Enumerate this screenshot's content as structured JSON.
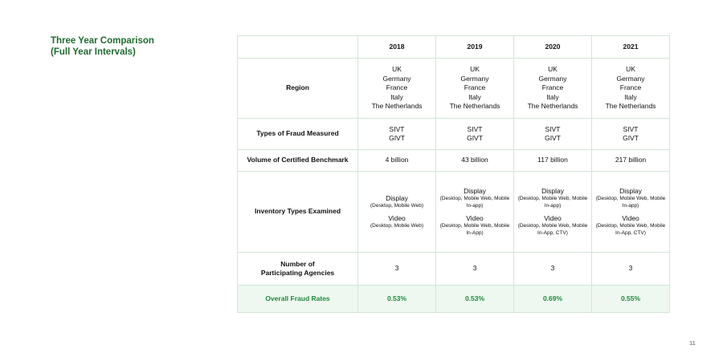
{
  "title": {
    "line1": "Three Year Comparison",
    "line2": "(Full Year Intervals)"
  },
  "years": [
    "2018",
    "2019",
    "2020",
    "2021"
  ],
  "rows": {
    "region": {
      "label": "Region",
      "values": [
        [
          "UK",
          "Germany",
          "France",
          "Italy",
          "The Netherlands"
        ],
        [
          "UK",
          "Germany",
          "France",
          "Italy",
          "The Netherlands"
        ],
        [
          "UK",
          "Germany",
          "France",
          "Italy",
          "The Netherlands"
        ],
        [
          "UK",
          "Germany",
          "France",
          "Italy",
          "The Netherlands"
        ]
      ]
    },
    "fraud_types": {
      "label": "Types of Fraud Measured",
      "values": [
        [
          "SIVT",
          "GIVT"
        ],
        [
          "SIVT",
          "GIVT"
        ],
        [
          "SIVT",
          "GIVT"
        ],
        [
          "SIVT",
          "GIVT"
        ]
      ]
    },
    "volume": {
      "label": "Volume of Certified Benchmark",
      "values": [
        "4 billion",
        "43 billion",
        "117 billion",
        "217 billion"
      ]
    },
    "inventory": {
      "label": "Inventory Types Examined",
      "values": [
        {
          "display": "Display",
          "display_detail": "(Desktop, Mobile Web)",
          "video": "Video",
          "video_detail": "(Desktop, Mobile Web)"
        },
        {
          "display": "Display",
          "display_detail": "(Desktop, Mobile Web, Mobile In-app)",
          "video": "Video",
          "video_detail": "(Desktop, Mobile Web, Mobile In-App)"
        },
        {
          "display": "Display",
          "display_detail": "(Desktop, Mobile Web, Mobile In-app)",
          "video": "Video",
          "video_detail": "(Desktop, Mobile Web, Mobile In-App, CTV)"
        },
        {
          "display": "Display",
          "display_detail": "(Desktop, Mobile Web, Mobile In-app)",
          "video": "Video",
          "video_detail": "(Desktop, Mobile Web, Mobile In-App, CTV)"
        }
      ]
    },
    "agencies": {
      "label_line1": "Number of",
      "label_line2": "Participating Agencies",
      "values": [
        "3",
        "3",
        "3",
        "3"
      ]
    },
    "fraud_rates": {
      "label": "Overall Fraud Rates",
      "values": [
        "0.53%",
        "0.53%",
        "0.69%",
        "0.55%"
      ]
    }
  },
  "page_number": "11",
  "colors": {
    "accent_green": "#1f8a3a",
    "title_green": "#1f6b2e",
    "border": "#cfe7d6",
    "highlight_bg": "#eef8f1"
  }
}
